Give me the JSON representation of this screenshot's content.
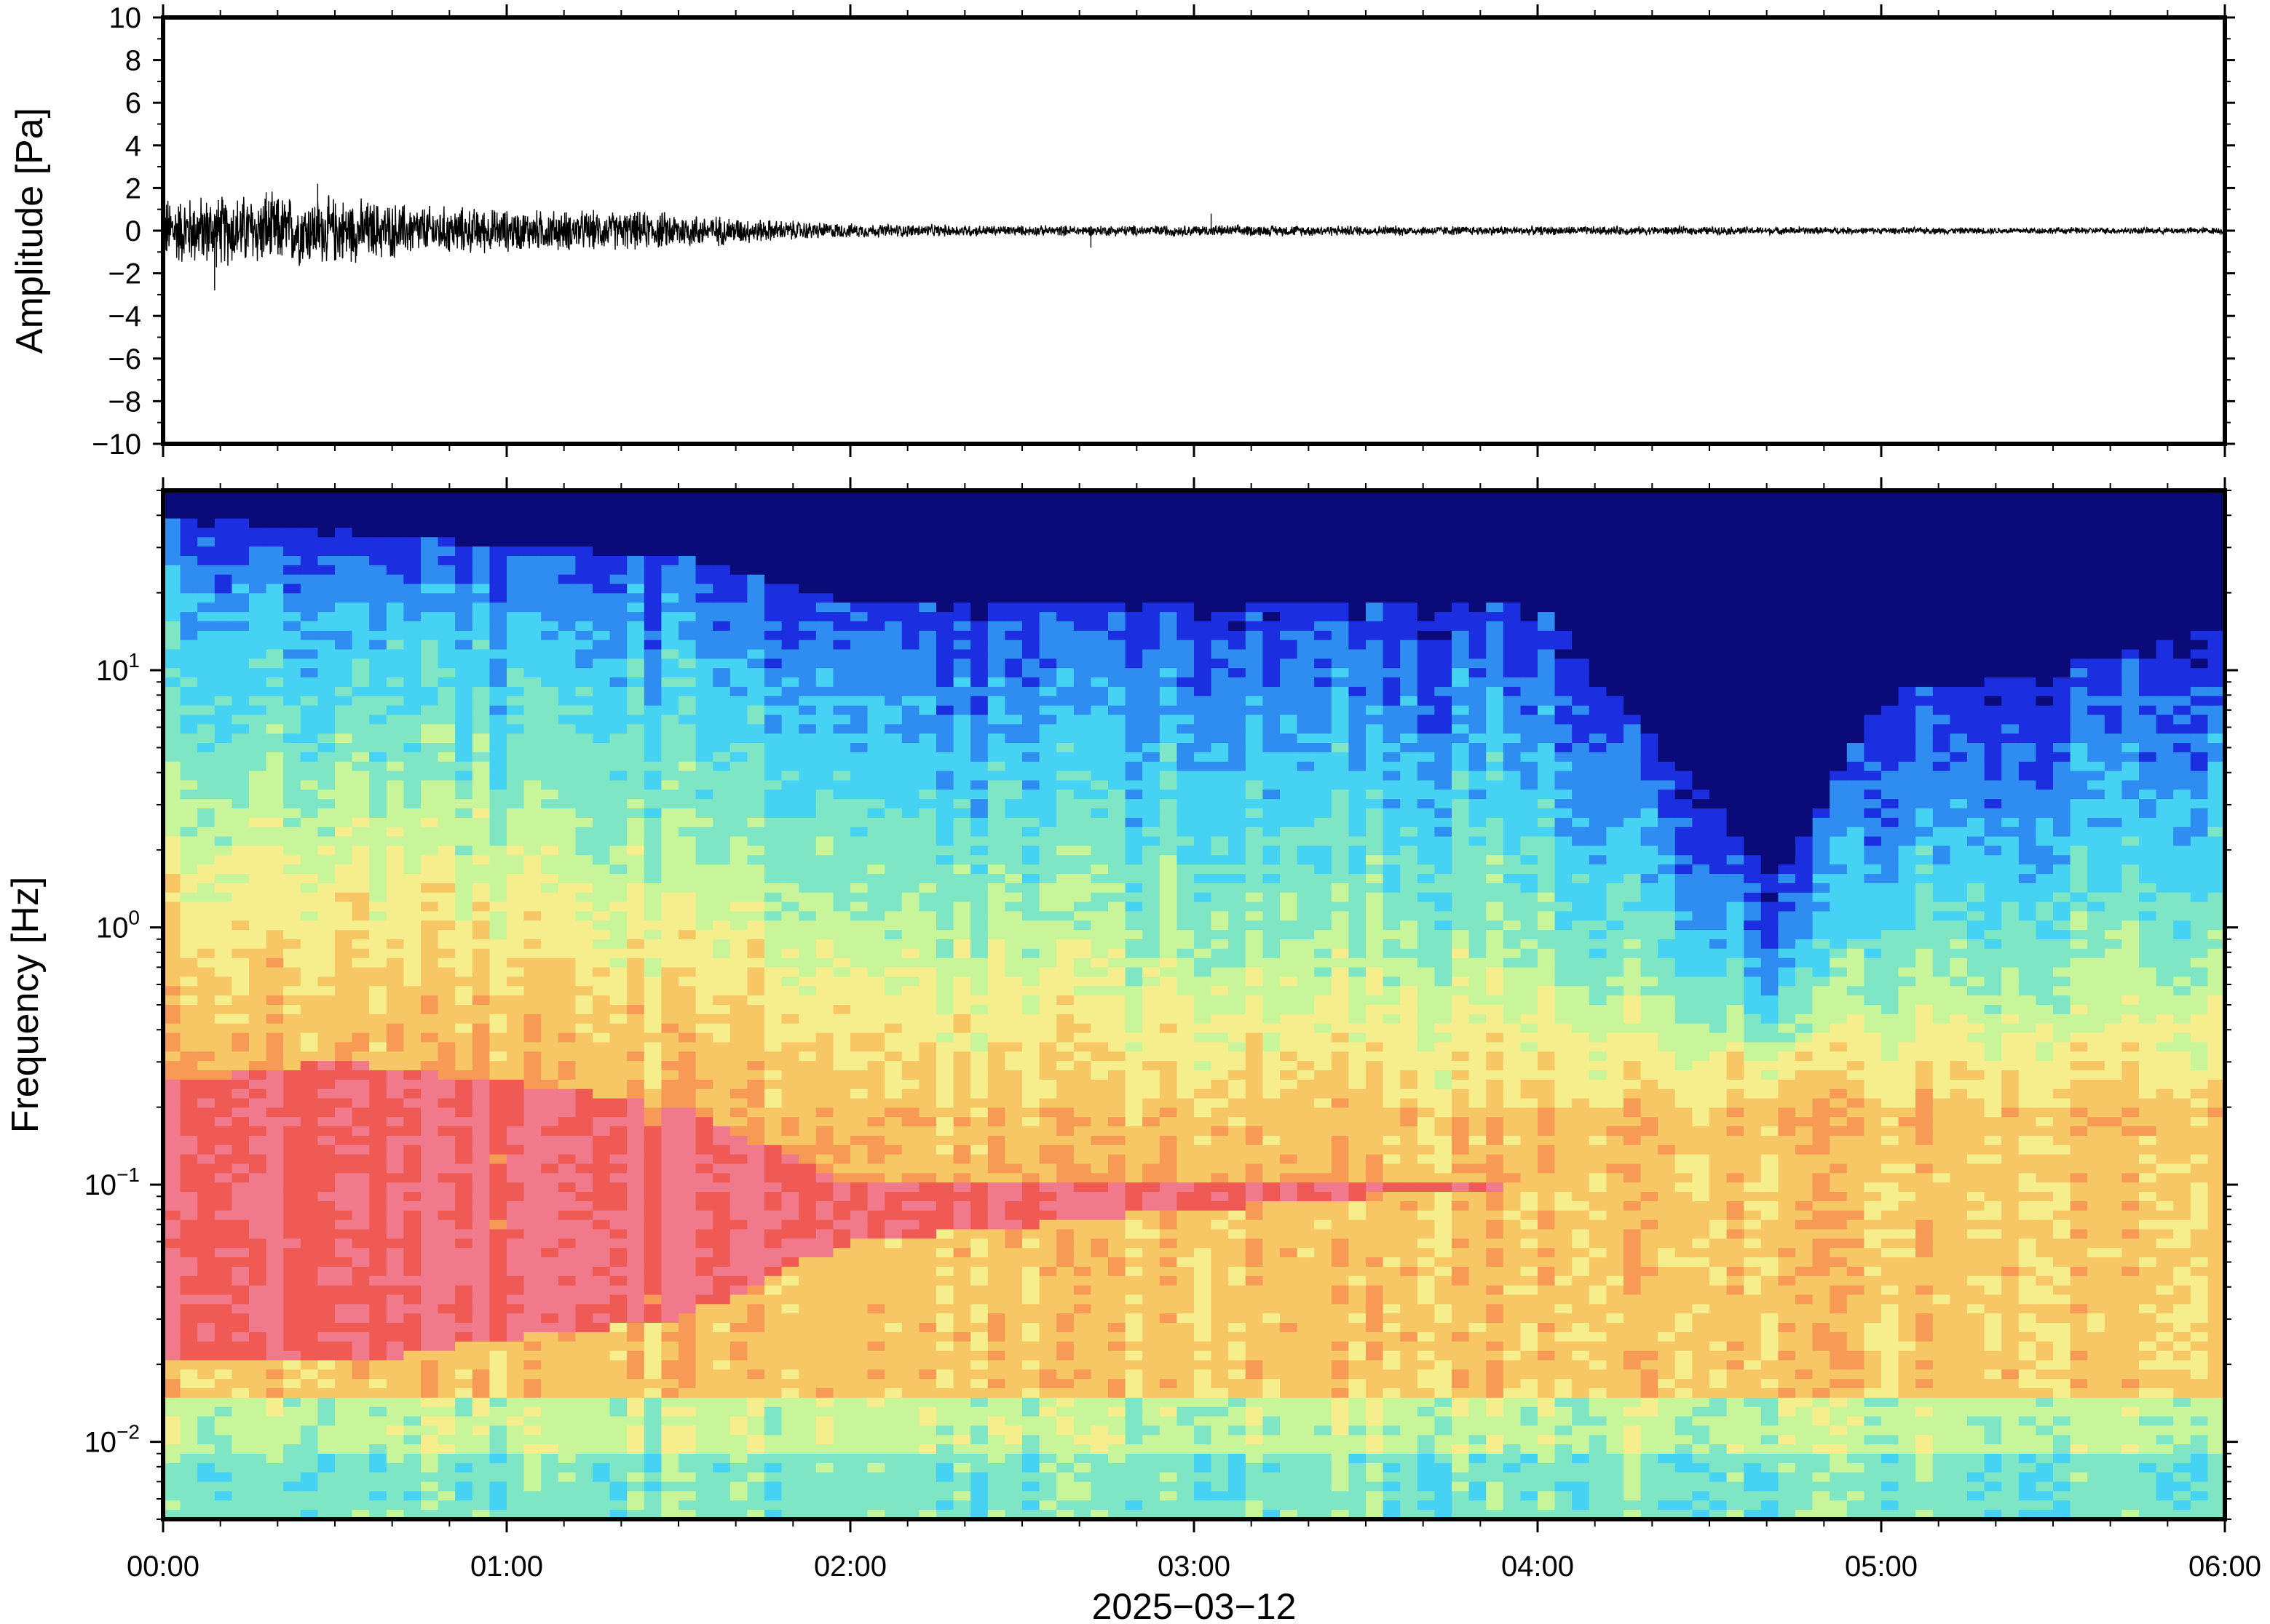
{
  "chart_data": [
    {
      "type": "line",
      "panel": "waveform",
      "ylabel": "Amplitude [Pa]",
      "ylim": [
        -10,
        10
      ],
      "y_ticks": [
        10,
        8,
        6,
        4,
        2,
        0,
        -2,
        -4,
        -6,
        -8,
        -10
      ],
      "y_tick_labels": [
        "10",
        "8",
        "6",
        "4",
        "2",
        "0",
        "−2",
        "−4",
        "−6",
        "−8",
        "−10"
      ],
      "xlim_hours": [
        0,
        6
      ],
      "grid": false,
      "envelope": [
        {
          "t": 0.0,
          "amp": 1.2
        },
        {
          "t": 0.25,
          "amp": 1.3
        },
        {
          "t": 0.5,
          "amp": 1.2
        },
        {
          "t": 0.75,
          "amp": 0.9
        },
        {
          "t": 1.0,
          "amp": 0.75
        },
        {
          "t": 1.25,
          "amp": 0.7
        },
        {
          "t": 1.5,
          "amp": 0.65
        },
        {
          "t": 1.75,
          "amp": 0.4
        },
        {
          "t": 2.0,
          "amp": 0.25
        },
        {
          "t": 2.5,
          "amp": 0.18
        },
        {
          "t": 3.0,
          "amp": 0.2
        },
        {
          "t": 3.5,
          "amp": 0.18
        },
        {
          "t": 4.0,
          "amp": 0.16
        },
        {
          "t": 4.5,
          "amp": 0.15
        },
        {
          "t": 5.0,
          "amp": 0.12
        },
        {
          "t": 5.5,
          "amp": 0.12
        },
        {
          "t": 6.0,
          "amp": 0.12
        }
      ],
      "peaks": [
        {
          "t": 0.45,
          "value": 2.2
        },
        {
          "t": 0.15,
          "value": -2.8
        },
        {
          "t": 0.3,
          "value": 1.8
        },
        {
          "t": 3.05,
          "value": 0.8
        },
        {
          "t": 2.7,
          "value": -0.8
        }
      ]
    },
    {
      "type": "heatmap",
      "panel": "spectrogram",
      "ylabel": "Frequency [Hz]",
      "y_scale": "log",
      "ylim": [
        0.005,
        50
      ],
      "y_ticks": [
        0.01,
        0.1,
        1,
        10
      ],
      "y_tick_labels": [
        {
          "base": "10",
          "exp": "−2"
        },
        {
          "base": "10",
          "exp": "−1"
        },
        {
          "base": "10",
          "exp": "0"
        },
        {
          "base": "10",
          "exp": "1"
        }
      ],
      "colormap": [
        "#0a0a78",
        "#1b2ee0",
        "#2f8cf0",
        "#46d2f2",
        "#7ee6c4",
        "#c8f59a",
        "#f6ee8c",
        "#f8c765",
        "#f69a55",
        "#ef5a55",
        "#f07a8c"
      ],
      "description_scale": "relative power (no colorbar shown)",
      "columns": [
        {
          "t": 0.0,
          "top_dark_hz": 40,
          "blue_hz": 20,
          "green_hz": 3,
          "yellow_hz": 1.5,
          "red_low_hz": 0.02,
          "red_high_hz": 0.25
        },
        {
          "t": 0.5,
          "top_dark_hz": 35,
          "blue_hz": 18,
          "green_hz": 4,
          "yellow_hz": 1.5,
          "red_low_hz": 0.02,
          "red_high_hz": 0.3
        },
        {
          "t": 1.0,
          "top_dark_hz": 30,
          "blue_hz": 15,
          "green_hz": 3,
          "yellow_hz": 1.0,
          "red_low_hz": 0.025,
          "red_high_hz": 0.25
        },
        {
          "t": 1.5,
          "top_dark_hz": 28,
          "blue_hz": 12,
          "green_hz": 2,
          "yellow_hz": 0.8,
          "red_low_hz": 0.03,
          "red_high_hz": 0.2
        },
        {
          "t": 2.0,
          "top_dark_hz": 18,
          "blue_hz": 6,
          "green_hz": 1.2,
          "yellow_hz": 0.5,
          "red_low_hz": 0.06,
          "red_high_hz": 0.1
        },
        {
          "t": 3.0,
          "top_dark_hz": 18,
          "blue_hz": 6,
          "green_hz": 1.0,
          "yellow_hz": 0.4,
          "red_low_hz": 0.08,
          "red_high_hz": 0.1
        },
        {
          "t": 4.0,
          "top_dark_hz": 18,
          "blue_hz": 5,
          "green_hz": 0.8,
          "yellow_hz": 0.35,
          "red_low_hz": 0.1,
          "red_high_hz": 0.1
        },
        {
          "t": 4.7,
          "top_dark_hz": 1.5,
          "blue_hz": 0.6,
          "green_hz": 0.35,
          "yellow_hz": 0.3,
          "red_low_hz": 0.15,
          "red_high_hz": 0.15
        },
        {
          "t": 5.0,
          "top_dark_hz": 8,
          "blue_hz": 2,
          "green_hz": 0.6,
          "yellow_hz": 0.35,
          "red_low_hz": 0.15,
          "red_high_hz": 0.15
        },
        {
          "t": 5.5,
          "top_dark_hz": 10,
          "blue_hz": 3,
          "green_hz": 0.7,
          "yellow_hz": 0.35,
          "red_low_hz": 0.15,
          "red_high_hz": 0.15
        },
        {
          "t": 6.0,
          "top_dark_hz": 15,
          "blue_hz": 4,
          "green_hz": 0.8,
          "yellow_hz": 0.4,
          "red_low_hz": 0.15,
          "red_high_hz": 0.15
        }
      ],
      "notable_band_hz": 0.18
    }
  ],
  "x_axis": {
    "tick_labels": [
      "00:00",
      "01:00",
      "02:00",
      "03:00",
      "04:00",
      "05:00",
      "06:00"
    ],
    "tick_hours": [
      0,
      1,
      2,
      3,
      4,
      5,
      6
    ],
    "date_label": "2025−03−12"
  }
}
